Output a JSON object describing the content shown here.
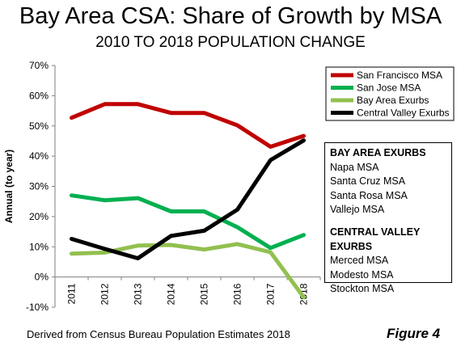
{
  "chart_data": {
    "type": "line",
    "title": "Bay Area CSA: Share of Growth by MSA",
    "subtitle": "2010 TO 2018 POPULATION CHANGE",
    "ylabel": "Annual (to year)",
    "xlabel": "",
    "categories": [
      "2011",
      "2012",
      "2013",
      "2014",
      "2015",
      "2016",
      "2017",
      "2018"
    ],
    "ylim": [
      -10,
      70
    ],
    "yticks": [
      -10,
      0,
      10,
      20,
      30,
      40,
      50,
      60,
      70
    ],
    "ytick_labels": [
      "-10%",
      "0%",
      "10%",
      "20%",
      "30%",
      "40%",
      "50%",
      "60%",
      "70%"
    ],
    "grid": false,
    "legend": "top-right",
    "series": [
      {
        "name": "San Francisco MSA",
        "color": "#c00000",
        "values": [
          52.7,
          57.2,
          57.2,
          54.3,
          54.3,
          50.2,
          43.1,
          46.7
        ]
      },
      {
        "name": "San Jose MSA",
        "color": "#00b050",
        "values": [
          27.0,
          25.4,
          26.1,
          21.7,
          21.7,
          16.5,
          9.6,
          13.9
        ]
      },
      {
        "name": "Bay Area Exurbs",
        "color": "#92c050",
        "values": [
          7.7,
          8.1,
          10.4,
          10.6,
          9.1,
          10.9,
          8.2,
          -6.7
        ]
      },
      {
        "name": "Central Valley Exurbs",
        "color": "#000000",
        "values": [
          12.6,
          9.3,
          6.2,
          13.6,
          15.3,
          22.3,
          38.7,
          45.2
        ]
      }
    ]
  },
  "notes": {
    "bay_area_heading": "BAY AREA EXURBS",
    "bay_area_items": [
      "Napa MSA",
      "Santa Cruz MSA",
      "Santa Rosa MSA",
      "Vallejo MSA"
    ],
    "central_valley_heading": "CENTRAL VALLEY EXURBS",
    "central_valley_items": [
      "Merced MSA",
      "Modesto MSA",
      "Stockton MSA"
    ]
  },
  "footer": {
    "source": "Derived from Census Bureau Population Estimates 2018",
    "figure_label": "Figure 4"
  }
}
